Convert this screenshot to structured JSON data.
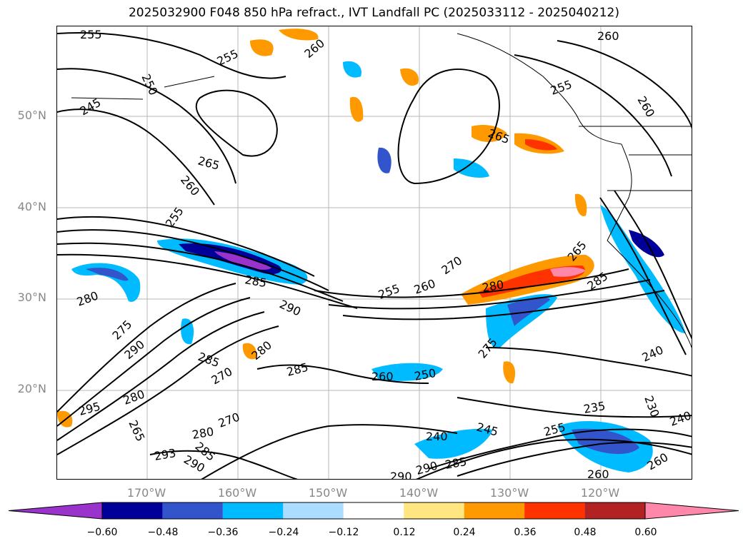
{
  "title": "2025032900 F048 850 hPa refract., IVT Landfall PC (2025033112 - 2025040212)",
  "map": {
    "lat_labels": [
      "50°N",
      "40°N",
      "30°N",
      "20°N"
    ],
    "lon_labels": [
      "170°W",
      "160°W",
      "150°W",
      "140°W",
      "130°W",
      "120°W"
    ],
    "contour_labels": [
      "255",
      "250",
      "245",
      "255",
      "260",
      "260",
      "255",
      "260",
      "265",
      "265",
      "260",
      "255",
      "270",
      "285",
      "255",
      "260",
      "280",
      "265",
      "285",
      "280",
      "290",
      "275",
      "290",
      "285",
      "270",
      "280",
      "285",
      "250",
      "260",
      "275",
      "240",
      "295",
      "280",
      "265",
      "270",
      "280",
      "285",
      "293",
      "290",
      "240",
      "245",
      "235",
      "230",
      "255",
      "240",
      "290",
      "285",
      "260",
      "260",
      "290"
    ],
    "colors": {
      "land_border": "#000000",
      "grid": "#999999"
    }
  },
  "colorbar": {
    "ticks": [
      "−0.60",
      "−0.48",
      "−0.36",
      "−0.24",
      "−0.12",
      "0.12",
      "0.24",
      "0.36",
      "0.48",
      "0.60"
    ],
    "colors": [
      "#9933cc",
      "#000099",
      "#3355cc",
      "#00bbff",
      "#aaddff",
      "#ffffff",
      "#ffe680",
      "#ff9900",
      "#ff3300",
      "#b22222",
      "#ff88aa"
    ]
  }
}
